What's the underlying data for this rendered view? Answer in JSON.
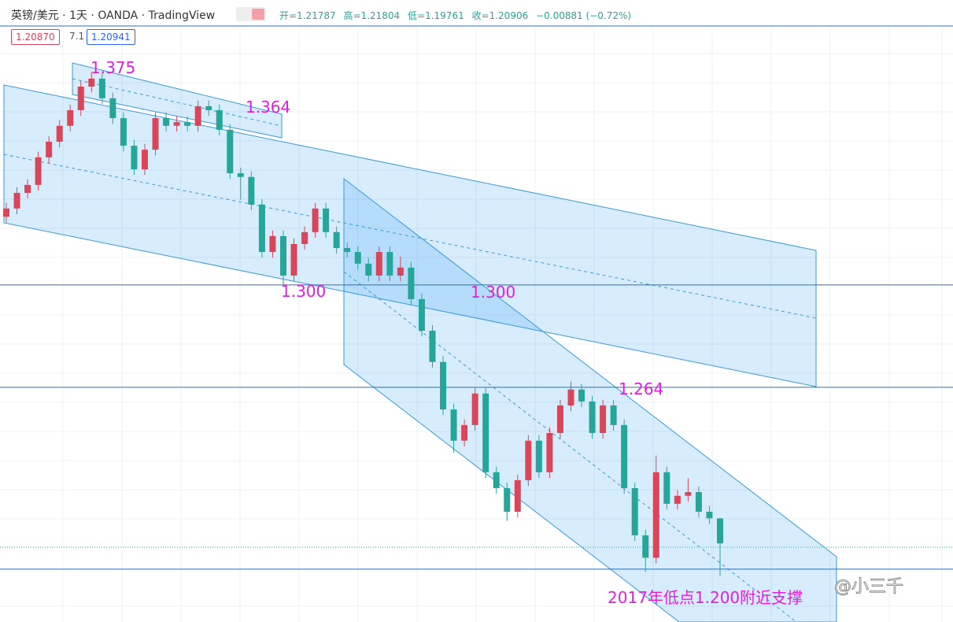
{
  "chart_data": {
    "type": "candlestick",
    "title": "英镑/美元 · 1天 · OANDA · TradingView",
    "legend": {
      "open": "开=1.21787",
      "high": "高=1.21804",
      "low": "低=1.19761",
      "close": "收=1.20906",
      "change": "−0.00881 (−0.72%)",
      "bid": "1.20870",
      "spread": "7.1",
      "ask": "1.20941"
    },
    "annotations": [
      "1.375",
      "1.364",
      "1.300",
      "1.300",
      "1.264",
      "2017年低点1.200附近支撑"
    ],
    "watermark": "@小三千",
    "up_color": "#d9465a",
    "down_color": "#26a69a",
    "level_color": "#2a6fb8",
    "ylim": [
      1.1814,
      1.3903
    ],
    "levels": [
      1.3,
      1.264,
      1.2
    ],
    "open": [
      1.324,
      1.3269,
      1.3324,
      1.3352,
      1.3449,
      1.3504,
      1.356,
      1.3615,
      1.3698,
      1.3726,
      1.3657,
      1.3587,
      1.349,
      1.3407,
      1.3476,
      1.3587,
      1.356,
      1.3573,
      1.356,
      1.3629,
      1.3615,
      1.3546,
      1.3393,
      1.338,
      1.3283,
      1.3116,
      1.3172,
      1.3033,
      1.3144,
      1.3186,
      1.3269,
      1.3186,
      1.313,
      1.3116,
      1.3075,
      1.3033,
      1.3116,
      1.3033,
      1.3061,
      1.295,
      1.2839,
      1.2729,
      1.2562,
      1.2452,
      1.2507,
      1.2618,
      1.2341,
      1.2285,
      1.2202,
      1.2313,
      1.2452,
      1.2341,
      1.2479,
      1.2576,
      1.2632,
      1.259,
      1.2479,
      1.2576,
      1.2507,
      1.2285,
      1.2119,
      1.204,
      1.2341,
      1.223,
      1.2258,
      1.2271,
      1.2202,
      1.21787
    ],
    "high": [
      1.3289,
      1.3344,
      1.3372,
      1.3469,
      1.3524,
      1.358,
      1.3635,
      1.3718,
      1.375,
      1.3746,
      1.3677,
      1.3607,
      1.351,
      1.3496,
      1.3607,
      1.3607,
      1.3593,
      1.3593,
      1.3649,
      1.3649,
      1.3635,
      1.3566,
      1.3413,
      1.34,
      1.3303,
      1.3192,
      1.3192,
      1.3164,
      1.3206,
      1.3289,
      1.3289,
      1.3206,
      1.315,
      1.3136,
      1.3095,
      1.3136,
      1.3136,
      1.31,
      1.3081,
      1.297,
      1.2859,
      1.2749,
      1.2582,
      1.2527,
      1.2638,
      1.2638,
      1.2361,
      1.2305,
      1.2333,
      1.2472,
      1.2472,
      1.2499,
      1.2596,
      1.266,
      1.2652,
      1.261,
      1.2596,
      1.2596,
      1.2527,
      1.2305,
      1.2139,
      1.24,
      1.2361,
      1.2278,
      1.232,
      1.2291,
      1.2222,
      1.21804
    ],
    "low": [
      1.322,
      1.3249,
      1.3304,
      1.3332,
      1.3429,
      1.3484,
      1.354,
      1.3595,
      1.3678,
      1.3637,
      1.3567,
      1.347,
      1.3387,
      1.3387,
      1.3456,
      1.354,
      1.354,
      1.354,
      1.354,
      1.3595,
      1.3526,
      1.3373,
      1.33,
      1.3263,
      1.3096,
      1.3096,
      1.2995,
      1.3013,
      1.3124,
      1.3166,
      1.3166,
      1.311,
      1.3096,
      1.3055,
      1.3013,
      1.3013,
      1.3013,
      1.3013,
      1.293,
      1.2819,
      1.2709,
      1.2542,
      1.241,
      1.2432,
      1.2487,
      1.2321,
      1.2265,
      1.217,
      1.2182,
      1.2293,
      1.2321,
      1.2321,
      1.2459,
      1.2556,
      1.257,
      1.2459,
      1.2459,
      1.2487,
      1.2265,
      1.2099,
      1.199,
      1.202,
      1.221,
      1.221,
      1.2238,
      1.2182,
      1.2159,
      1.19761
    ],
    "close": [
      1.3269,
      1.3324,
      1.3352,
      1.3449,
      1.3504,
      1.356,
      1.3615,
      1.3698,
      1.3726,
      1.3657,
      1.3587,
      1.349,
      1.3407,
      1.3476,
      1.3587,
      1.356,
      1.3573,
      1.356,
      1.3629,
      1.3615,
      1.3546,
      1.3393,
      1.338,
      1.3283,
      1.3116,
      1.3172,
      1.3033,
      1.3144,
      1.3186,
      1.3269,
      1.3186,
      1.313,
      1.3116,
      1.3075,
      1.3033,
      1.3116,
      1.3033,
      1.3061,
      1.295,
      1.2839,
      1.2729,
      1.2562,
      1.2452,
      1.2507,
      1.2618,
      1.2341,
      1.2285,
      1.2202,
      1.2313,
      1.2452,
      1.2341,
      1.2479,
      1.2576,
      1.2632,
      1.259,
      1.2479,
      1.2576,
      1.2507,
      1.2285,
      1.2119,
      1.204,
      1.2341,
      1.223,
      1.2258,
      1.2271,
      1.2202,
      1.2179,
      1.20906
    ]
  }
}
